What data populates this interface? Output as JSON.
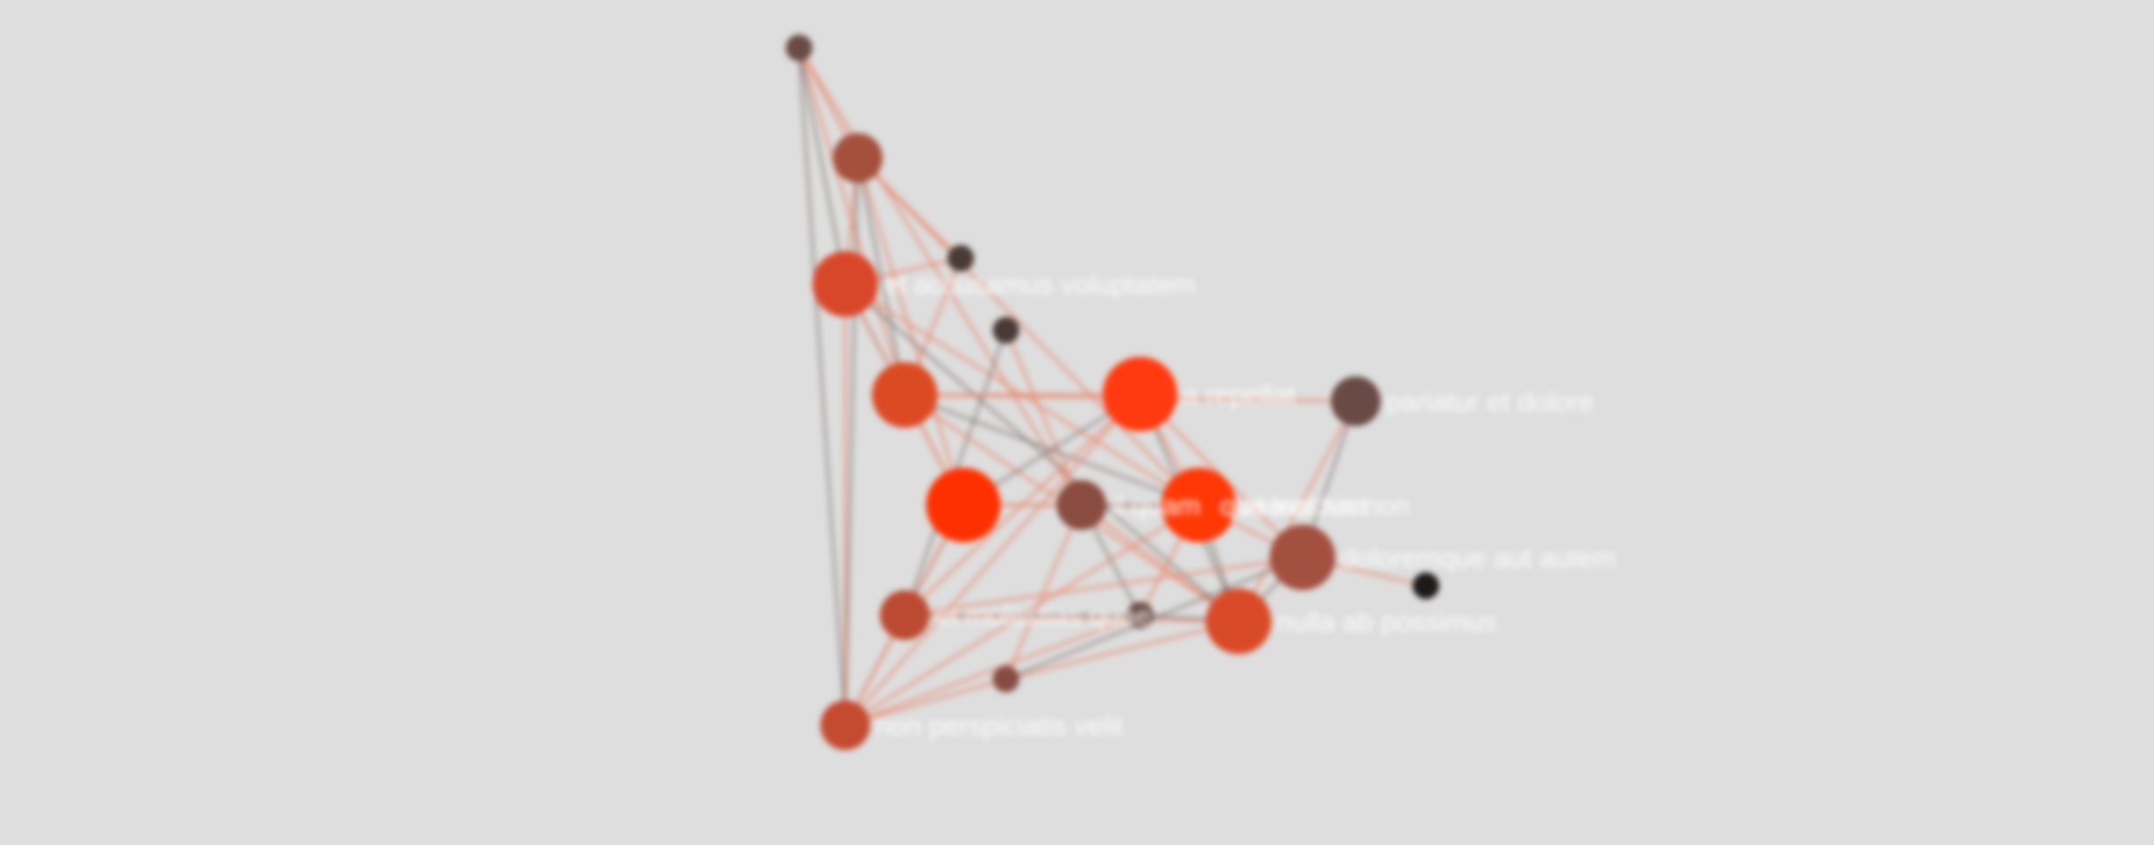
{
  "colors": {
    "background": "#dedede",
    "label": "#ffffff",
    "edge_warm": "#e8846a",
    "edge_cool": "#6e5f5a"
  },
  "graph": {
    "nodes": [
      {
        "id": "n0",
        "label": "",
        "color": "#6a4a44",
        "weight": 1
      },
      {
        "id": "n1",
        "label": "",
        "color": "#a4503c",
        "weight": 2
      },
      {
        "id": "n2",
        "label": "",
        "color": "#4a3a36",
        "weight": 1
      },
      {
        "id": "n3",
        "label": "et accusamus voluptatem",
        "color": "#d9472a",
        "weight": 3
      },
      {
        "id": "n4",
        "label": "",
        "color": "#4a3a36",
        "weight": 1
      },
      {
        "id": "n5",
        "label": "",
        "color": "#dc4a24",
        "weight": 3
      },
      {
        "id": "n6",
        "label": "a repellat",
        "color": "#ff3a10",
        "weight": 4
      },
      {
        "id": "n7",
        "label": "pariatur et dolore",
        "color": "#6a4a44",
        "weight": 2
      },
      {
        "id": "n8",
        "label": "",
        "color": "#ff3000",
        "weight": 4
      },
      {
        "id": "n9",
        "label": "il quam",
        "color": "#8a4c40",
        "weight": 2
      },
      {
        "id": "n10",
        "label": "at incidunt",
        "color": "#ff3806",
        "weight": 4
      },
      {
        "id": "n11",
        "label": "quaerat nis non",
        "color": "#ff3806",
        "weight": 0
      },
      {
        "id": "n12",
        "label": "doloremque aut autem",
        "color": "#a45040",
        "weight": 3
      },
      {
        "id": "n13",
        "label": "",
        "color": "#1e1a1a",
        "weight": 1
      },
      {
        "id": "n14",
        "label": "et molestias quae",
        "color": "#bc4a32",
        "weight": 2
      },
      {
        "id": "n15",
        "label": "",
        "color": "#6a4a44",
        "weight": 1
      },
      {
        "id": "n16",
        "label": "nulla ab possimus",
        "color": "#d94a28",
        "weight": 3
      },
      {
        "id": "n17",
        "label": "",
        "color": "#864c44",
        "weight": 1
      },
      {
        "id": "n18",
        "label": "non perspiciatis velit",
        "color": "#c44a30",
        "weight": 2
      }
    ],
    "edges": [
      [
        "n0",
        "n1"
      ],
      [
        "n0",
        "n3"
      ],
      [
        "n0",
        "n5"
      ],
      [
        "n0",
        "n9"
      ],
      [
        "n0",
        "n18"
      ],
      [
        "n1",
        "n2"
      ],
      [
        "n1",
        "n3"
      ],
      [
        "n1",
        "n5"
      ],
      [
        "n1",
        "n8"
      ],
      [
        "n1",
        "n10"
      ],
      [
        "n1",
        "n18"
      ],
      [
        "n2",
        "n3"
      ],
      [
        "n2",
        "n5"
      ],
      [
        "n3",
        "n5"
      ],
      [
        "n3",
        "n8"
      ],
      [
        "n3",
        "n10"
      ],
      [
        "n3",
        "n16"
      ],
      [
        "n3",
        "n18"
      ],
      [
        "n4",
        "n9"
      ],
      [
        "n4",
        "n14"
      ],
      [
        "n5",
        "n6"
      ],
      [
        "n5",
        "n8"
      ],
      [
        "n5",
        "n10"
      ],
      [
        "n5",
        "n16"
      ],
      [
        "n5",
        "n7"
      ],
      [
        "n6",
        "n8"
      ],
      [
        "n6",
        "n10"
      ],
      [
        "n6",
        "n14"
      ],
      [
        "n6",
        "n16"
      ],
      [
        "n6",
        "n12"
      ],
      [
        "n6",
        "n18"
      ],
      [
        "n7",
        "n12"
      ],
      [
        "n7",
        "n16"
      ],
      [
        "n8",
        "n9"
      ],
      [
        "n8",
        "n14"
      ],
      [
        "n8",
        "n18"
      ],
      [
        "n8",
        "n10"
      ],
      [
        "n9",
        "n10"
      ],
      [
        "n9",
        "n17"
      ],
      [
        "n9",
        "n16"
      ],
      [
        "n9",
        "n15"
      ],
      [
        "n10",
        "n12"
      ],
      [
        "n10",
        "n15"
      ],
      [
        "n10",
        "n16"
      ],
      [
        "n10",
        "n18"
      ],
      [
        "n12",
        "n13"
      ],
      [
        "n12",
        "n16"
      ],
      [
        "n12",
        "n14"
      ],
      [
        "n14",
        "n18"
      ],
      [
        "n14",
        "n15"
      ],
      [
        "n14",
        "n16"
      ],
      [
        "n15",
        "n18"
      ],
      [
        "n15",
        "n16"
      ],
      [
        "n16",
        "n17"
      ],
      [
        "n17",
        "n18"
      ],
      [
        "n17",
        "n12"
      ]
    ]
  }
}
